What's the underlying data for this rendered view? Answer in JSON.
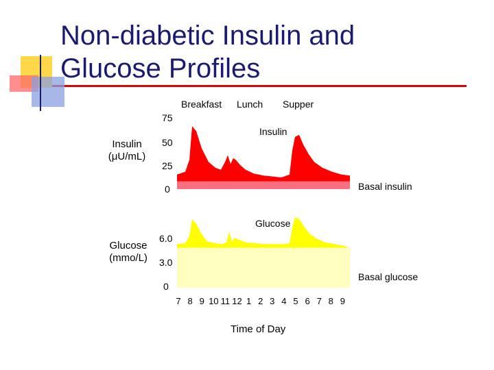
{
  "slide": {
    "title": "Non-diabetic Insulin and\n Glucose Profiles",
    "colors": {
      "title": "#1a1a6e",
      "rule": "#dd0000",
      "insulin": "#ff0000",
      "basal_insulin": "#f87080",
      "glucose": "#ffff00",
      "basal_glucose": "#ffffc0"
    }
  },
  "chart_data": [
    {
      "type": "area",
      "ylabel": "Insulin\n(μU/mL)",
      "ylim": [
        0,
        75
      ],
      "yticks": [
        "75",
        "50",
        "25",
        "0"
      ],
      "meals": [
        "Breakfast",
        "Lunch",
        "Supper"
      ],
      "series": [
        {
          "name": "Insulin",
          "x": [
            7,
            7.6,
            7.9,
            8.1,
            8.4,
            8.8,
            9.3,
            9.8,
            10.2,
            10.5,
            10.7,
            10.9,
            11.1,
            11.3,
            11.6,
            12,
            12.6,
            13.3,
            14,
            14.6,
            15.2,
            15.4,
            15.6,
            15.9,
            16.2,
            16.6,
            17,
            17.6,
            18.3,
            19,
            19.6
          ],
          "values": [
            15,
            18,
            30,
            65,
            60,
            42,
            28,
            22,
            20,
            28,
            35,
            26,
            32,
            30,
            25,
            20,
            16,
            14,
            13,
            12,
            15,
            40,
            54,
            56,
            46,
            36,
            28,
            22,
            18,
            15,
            14
          ]
        }
      ],
      "baseline": {
        "name": "Basal insulin",
        "value": 8
      }
    },
    {
      "type": "area",
      "ylabel": "Glucose\n(mmo/L)",
      "ylim": [
        0,
        8
      ],
      "yticks": [
        "6.0",
        "3.0",
        "0"
      ],
      "series": [
        {
          "name": "Glucose",
          "x": [
            7,
            7.6,
            7.9,
            8.1,
            8.4,
            8.8,
            9.2,
            9.8,
            10.3,
            10.6,
            10.8,
            11,
            11.2,
            11.5,
            12,
            12.7,
            13.4,
            14.1,
            14.7,
            15.2,
            15.4,
            15.6,
            15.9,
            16.3,
            16.7,
            17.2,
            17.8,
            18.5,
            19.2,
            19.6
          ],
          "values": [
            4.9,
            5.0,
            5.8,
            7.7,
            7.2,
            6.0,
            5.2,
            5.0,
            4.9,
            5.1,
            6.3,
            5.2,
            5.6,
            5.4,
            5.1,
            5.0,
            4.9,
            4.9,
            4.9,
            5.0,
            6.8,
            7.9,
            7.7,
            6.8,
            6.0,
            5.5,
            5.1,
            4.9,
            4.7,
            4.4
          ]
        }
      ],
      "baseline": {
        "name": "Basal glucose",
        "value": 4.5
      },
      "x_ticks": [
        "7",
        "8",
        "9",
        "10",
        "11",
        "12",
        "1",
        "2",
        "3",
        "4",
        "5",
        "6",
        "7",
        "8",
        "9"
      ],
      "xlabel": "Time of Day"
    }
  ]
}
